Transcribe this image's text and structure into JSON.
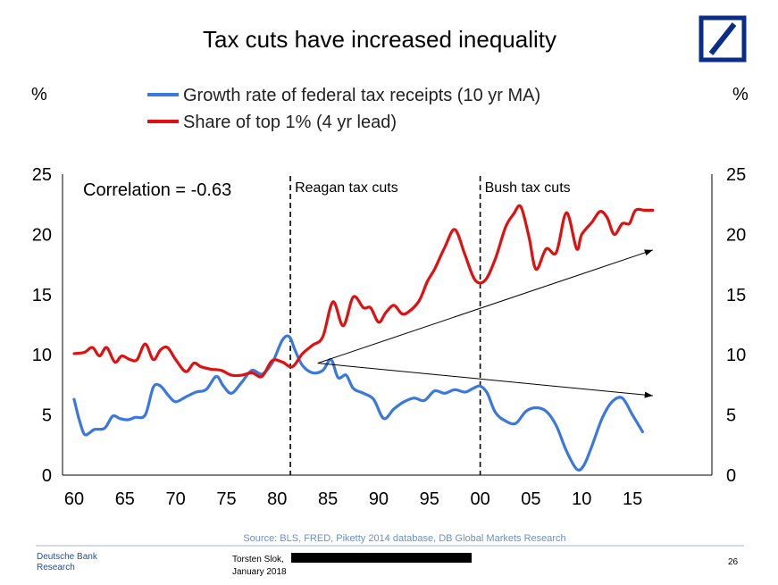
{
  "title": "Tax cuts have increased inequality",
  "left_unit": "%",
  "right_unit": "%",
  "legend": [
    {
      "label": "Growth rate of federal tax receipts (10 yr MA)",
      "color": "#3a78e0"
    },
    {
      "label": "Share of top 1% (4 yr lead)",
      "color": "#e01010"
    }
  ],
  "correlation_label": "Correlation = -0.63",
  "source": "Source: BLS, FRED, Piketty 2014 database, DB Global Markets Research",
  "footer": {
    "org_line1": "Deutsche Bank",
    "org_line2": "Research",
    "author": "Torsten Slok,",
    "date": "January 2018",
    "page": "26"
  },
  "logo_color": "#0a2d87",
  "chart_data": {
    "type": "line",
    "x_ticks": [
      "60",
      "65",
      "70",
      "75",
      "80",
      "85",
      "90",
      "95",
      "00",
      "05",
      "10",
      "15"
    ],
    "x_tick_years": [
      1960,
      1965,
      1970,
      1975,
      1980,
      1985,
      1990,
      1995,
      2000,
      2005,
      2010,
      2015
    ],
    "xlim": [
      1960,
      2023
    ],
    "ylim": [
      0,
      25
    ],
    "y_ticks": [
      0,
      5,
      10,
      15,
      20,
      25
    ],
    "annotations": [
      {
        "label": "Reagan tax cuts",
        "year": 1981.3
      },
      {
        "label": "Bush tax cuts",
        "year": 2000
      }
    ],
    "trend_arrows": [
      {
        "from": [
          1984,
          9.3
        ],
        "to": [
          2017,
          18.7
        ]
      },
      {
        "from": [
          1984,
          9.3
        ],
        "to": [
          2017,
          6.6
        ]
      }
    ],
    "series": [
      {
        "name": "Growth rate of federal tax receipts (10 yr MA)",
        "color": "#3a78e0",
        "x": [
          1960,
          1960.5,
          1961,
          1961.5,
          1962,
          1963,
          1963.8,
          1964.5,
          1965.3,
          1966,
          1967,
          1967.8,
          1968.5,
          1969.3,
          1970,
          1971,
          1972,
          1973,
          1974,
          1974.7,
          1975.5,
          1976.5,
          1977.5,
          1978.5,
          1979.5,
          1980.5,
          1981.2,
          1981.8,
          1982.5,
          1983.5,
          1984.5,
          1985.3,
          1986,
          1986.8,
          1987.5,
          1988.5,
          1989.5,
          1990.5,
          1991.5,
          1992.5,
          1993.5,
          1994.5,
          1995.5,
          1996.5,
          1997.5,
          1998.5,
          1999.3,
          2000,
          2000.7,
          2001.5,
          2002.5,
          2003.5,
          2004.5,
          2005.5,
          2006.5,
          2007.5,
          2008.5,
          2009.5,
          2010.2,
          2011,
          2012,
          2013,
          2014,
          2015,
          2016
        ],
        "values": [
          6.3,
          4.6,
          3.4,
          3.5,
          3.8,
          3.9,
          4.9,
          4.7,
          4.6,
          4.8,
          5.0,
          7.3,
          7.4,
          6.6,
          6.1,
          6.5,
          6.9,
          7.1,
          8.2,
          7.4,
          6.8,
          7.7,
          8.7,
          8.4,
          9.3,
          11.2,
          11.5,
          10.3,
          9.1,
          8.5,
          8.7,
          9.6,
          8.1,
          8.3,
          7.2,
          6.8,
          6.3,
          4.7,
          5.5,
          6.1,
          6.4,
          6.2,
          7.0,
          6.8,
          7.1,
          6.9,
          7.2,
          7.4,
          6.8,
          5.2,
          4.5,
          4.3,
          5.3,
          5.6,
          5.3,
          4.1,
          2.0,
          0.5,
          0.8,
          2.4,
          4.7,
          6.1,
          6.4,
          5.0,
          3.6
        ]
      },
      {
        "name": "Share of top 1% (4 yr lead)",
        "color": "#e01010",
        "x": [
          1960,
          1961,
          1961.8,
          1962.5,
          1963.2,
          1964,
          1964.7,
          1965.5,
          1966.2,
          1967,
          1967.8,
          1968.5,
          1969.2,
          1970,
          1971,
          1971.8,
          1972.5,
          1973.5,
          1974.5,
          1975.5,
          1976.5,
          1977.5,
          1978.5,
          1979.5,
          1980.5,
          1981.5,
          1982.5,
          1983.5,
          1984.5,
          1985.5,
          1986.5,
          1987.5,
          1988.5,
          1989.2,
          1990,
          1990.7,
          1991.5,
          1992.3,
          1993,
          1994,
          1994.8,
          1995.5,
          1996.5,
          1997.5,
          1998.5,
          1999.5,
          2000.5,
          2001.5,
          2002.5,
          2003.3,
          2004,
          2004.8,
          2005.5,
          2006.5,
          2007.5,
          2008.5,
          2009.5,
          2010,
          2011,
          2011.8,
          2012.5,
          2013.2,
          2014,
          2014.7,
          2015.3,
          2016.2,
          2017
        ],
        "values": [
          10.1,
          10.2,
          10.6,
          9.9,
          10.6,
          9.4,
          9.9,
          9.6,
          9.6,
          10.9,
          9.6,
          10.4,
          10.6,
          9.6,
          8.6,
          9.3,
          9.0,
          8.8,
          8.7,
          8.3,
          8.3,
          8.5,
          8.2,
          9.5,
          9.4,
          9.0,
          10.1,
          10.8,
          11.5,
          14.4,
          12.4,
          14.8,
          13.9,
          13.9,
          12.7,
          13.5,
          14.1,
          13.4,
          13.6,
          14.5,
          16.1,
          17.1,
          18.9,
          20.4,
          18.3,
          16.2,
          16.2,
          18.0,
          20.6,
          21.7,
          22.3,
          19.8,
          17.1,
          18.8,
          18.5,
          21.8,
          18.8,
          20.0,
          21.0,
          21.9,
          21.4,
          20.0,
          20.9,
          20.9,
          22.0,
          22.0,
          22.0
        ]
      }
    ]
  }
}
